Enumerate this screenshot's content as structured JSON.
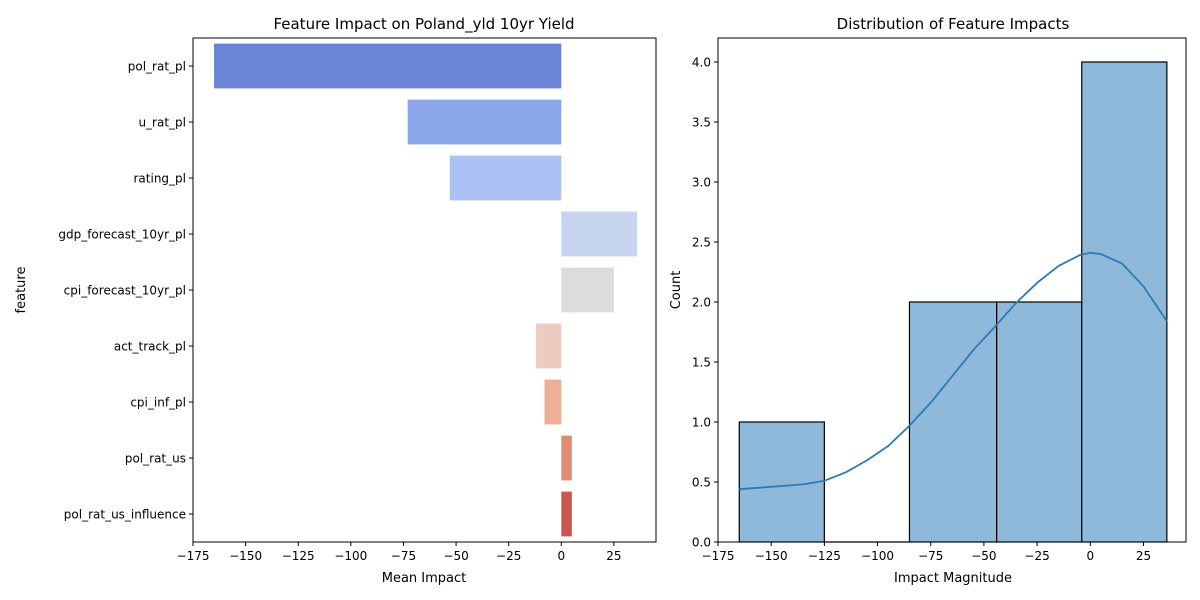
{
  "chart_data": [
    {
      "type": "bar",
      "orientation": "horizontal",
      "title": "Feature Impact on Poland_yld 10yr Yield",
      "xlabel": "Mean Impact",
      "ylabel": "feature",
      "xlim": [
        -175,
        45
      ],
      "xticks": [
        -175,
        -150,
        -125,
        -100,
        -75,
        -50,
        -25,
        0,
        25
      ],
      "categories": [
        "pol_rat_pl",
        "u_rat_pl",
        "rating_pl",
        "gdp_forecast_10yr_pl",
        "cpi_forecast_10yr_pl",
        "act_track_pl",
        "cpi_inf_pl",
        "pol_rat_us",
        "pol_rat_us_influence"
      ],
      "values": [
        -165,
        -73,
        -53,
        36,
        25,
        -12,
        -8,
        5,
        5
      ],
      "colors": [
        "#6b84d6",
        "#8ca6ea",
        "#aac2f4",
        "#c8d5f0",
        "#dcdcdc",
        "#ecccbf",
        "#ebb096",
        "#e08c71",
        "#c9574c"
      ],
      "grid": false
    },
    {
      "type": "histogram",
      "title": "Distribution of Feature Impacts",
      "xlabel": "Impact Magnitude",
      "ylabel": "Count",
      "xlim": [
        -175,
        45
      ],
      "ylim": [
        0,
        4.2
      ],
      "xticks": [
        -175,
        -150,
        -125,
        -100,
        -75,
        -50,
        -25,
        0,
        25
      ],
      "yticks": [
        0.0,
        0.5,
        1.0,
        1.5,
        2.0,
        2.5,
        3.0,
        3.5,
        4.0
      ],
      "bins": [
        {
          "x0": -165,
          "x1": -125,
          "count": 1
        },
        {
          "x0": -125,
          "x1": -85,
          "count": 0
        },
        {
          "x0": -85,
          "x1": -44,
          "count": 2
        },
        {
          "x0": -44,
          "x1": -4,
          "count": 2
        },
        {
          "x0": -4,
          "x1": 36,
          "count": 4
        }
      ],
      "kde": {
        "x": [
          -165,
          -150,
          -135,
          -125,
          -115,
          -105,
          -95,
          -85,
          -75,
          -65,
          -55,
          -45,
          -35,
          -25,
          -15,
          -5,
          0,
          5,
          15,
          25,
          36
        ],
        "y": [
          0.44,
          0.46,
          0.48,
          0.51,
          0.58,
          0.68,
          0.8,
          0.97,
          1.16,
          1.38,
          1.6,
          1.79,
          1.99,
          2.16,
          2.3,
          2.39,
          2.41,
          2.4,
          2.32,
          2.13,
          1.84
        ]
      },
      "bar_color": "#8eb9da",
      "line_color": "#2c7bb6",
      "grid": false
    }
  ]
}
